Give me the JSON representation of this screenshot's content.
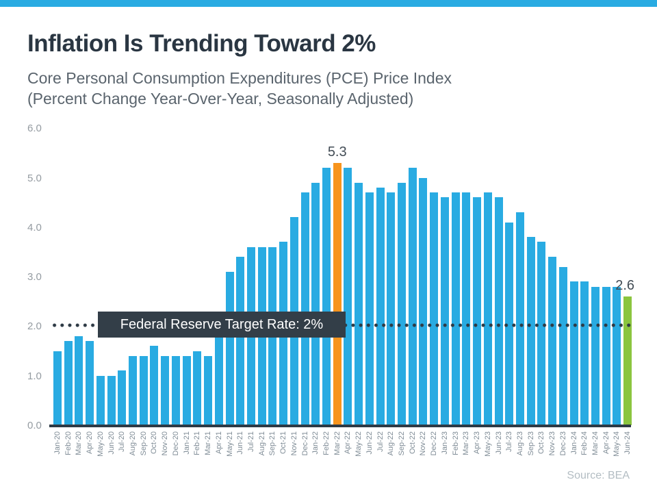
{
  "accent": {
    "top_bar_color": "#29ABE2"
  },
  "header": {
    "title": "Inflation Is Trending Toward 2%",
    "subtitle_line1": "Core Personal Consumption Expenditures (PCE) Price Index",
    "subtitle_line2": "(Percent Change Year-Over-Year, Seasonally Adjusted)"
  },
  "chart_data": {
    "type": "bar",
    "title": "Inflation Is Trending Toward 2%",
    "xlabel": "",
    "ylabel": "",
    "ylim": [
      0,
      6
    ],
    "grid": false,
    "legend": false,
    "y_ticks": [
      "6.0",
      "5.0",
      "4.0",
      "3.0",
      "2.0",
      "1.0",
      "0.0"
    ],
    "categories": [
      "Jan-20",
      "Feb-20",
      "Mar-20",
      "Apr-20",
      "May-20",
      "Jun-20",
      "Jul-20",
      "Aug-20",
      "Sep-20",
      "Oct-20",
      "Nov-20",
      "Dec-20",
      "Jan-21",
      "Feb-21",
      "Mar-21",
      "Apr-21",
      "May-21",
      "Jun-21",
      "Jul-21",
      "Aug-21",
      "Sep-21",
      "Oct-21",
      "Nov-21",
      "Dec-21",
      "Jan-22",
      "Feb-22",
      "Mar-22",
      "Apr-22",
      "May-22",
      "Jun-22",
      "Jul-22",
      "Aug-22",
      "Sep-22",
      "Oct-22",
      "Nov-22",
      "Dec-22",
      "Jan-23",
      "Feb-23",
      "Mar-23",
      "Apr-23",
      "May-23",
      "Jun-23",
      "Jul-23",
      "Aug-23",
      "Sep-23",
      "Oct-23",
      "Nov-23",
      "Dec-23",
      "Jan-24",
      "Feb-24",
      "Mar-24",
      "Apr-24",
      "May-24",
      "Jun-24"
    ],
    "values": [
      1.5,
      1.7,
      1.8,
      1.7,
      1.0,
      1.0,
      1.1,
      1.4,
      1.4,
      1.6,
      1.4,
      1.4,
      1.4,
      1.5,
      1.4,
      2.0,
      3.1,
      3.4,
      3.6,
      3.6,
      3.6,
      3.7,
      4.2,
      4.7,
      4.9,
      5.2,
      5.3,
      5.2,
      4.9,
      4.7,
      4.8,
      4.7,
      4.9,
      5.2,
      5.0,
      4.7,
      4.6,
      4.7,
      4.7,
      4.6,
      4.7,
      4.6,
      4.1,
      4.3,
      3.8,
      3.7,
      3.4,
      3.2,
      2.9,
      2.9,
      2.8,
      2.8,
      2.8,
      2.6
    ],
    "bar_color": "#29ABE2",
    "highlights": [
      {
        "category": "Mar-22",
        "index": 26,
        "color": "#F7941D",
        "data_label": "5.3"
      },
      {
        "category": "Jun-24",
        "index": 53,
        "color": "#8BC53F",
        "data_label": "2.6"
      }
    ],
    "target_line": {
      "value": 2.0,
      "label": "Federal Reserve Target Rate: 2%",
      "style": "dotted",
      "color": "#333E48"
    },
    "source": "Source: BEA"
  }
}
